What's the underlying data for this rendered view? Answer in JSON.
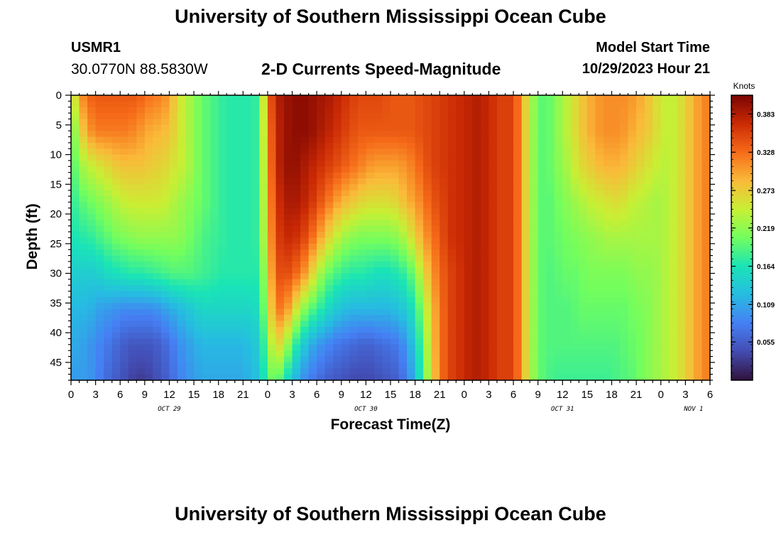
{
  "header": {
    "title": "University of Southern Mississippi Ocean Cube",
    "station": "USMR1",
    "coords": "30.0770N  88.5830W",
    "subtitle": "2-D Currents Speed-Magnitude",
    "start_label": "Model Start Time",
    "start_value": "10/29/2023 Hour 21"
  },
  "footer": {
    "title": "University of Southern Mississippi Ocean Cube"
  },
  "chart_data": {
    "type": "heatmap",
    "title": "2-D Currents Speed-Magnitude",
    "xlabel": "Forecast Time(Z)",
    "ylabel": "Depth (ft)",
    "colorbar_label": "Knots",
    "colorbar_ticks": [
      "0.055",
      "0.109",
      "0.164",
      "0.219",
      "0.273",
      "0.328",
      "0.383"
    ],
    "colorbar_range": [
      0.0,
      0.41
    ],
    "xlim": [
      0,
      78
    ],
    "ylim": [
      0,
      48
    ],
    "y_inverted": true,
    "x_tick_labels": [
      "0",
      "3",
      "6",
      "9",
      "12",
      "15",
      "18",
      "21",
      "0",
      "3",
      "6",
      "9",
      "12",
      "15",
      "18",
      "21",
      "0",
      "3",
      "6",
      "9",
      "12",
      "15",
      "18",
      "21",
      "0",
      "3",
      "6"
    ],
    "date_labels": [
      {
        "text": "OCT 29",
        "hour": 12
      },
      {
        "text": "OCT 30",
        "hour": 36
      },
      {
        "text": "OCT 31",
        "hour": 60
      },
      {
        "text": "NOV 1",
        "hour": 76
      }
    ],
    "y_ticks": [
      0,
      5,
      10,
      15,
      20,
      25,
      30,
      35,
      40,
      45
    ],
    "hours": [
      0,
      1,
      2,
      3,
      4,
      5,
      6,
      7,
      8,
      9,
      10,
      11,
      12,
      13,
      14,
      15,
      16,
      17,
      18,
      19,
      20,
      21,
      22,
      23,
      24,
      25,
      26,
      27,
      28,
      29,
      30,
      31,
      32,
      33,
      34,
      35,
      36,
      37,
      38,
      39,
      40,
      41,
      42,
      43,
      44,
      45,
      46,
      47,
      48,
      49,
      50,
      51,
      52,
      53,
      54,
      55,
      56,
      57,
      58,
      59,
      60,
      61,
      62,
      63,
      64,
      65,
      66,
      67,
      68,
      69,
      70,
      71,
      72,
      73,
      74,
      75,
      76,
      77,
      78
    ],
    "depths": [
      0,
      6,
      12,
      18,
      24,
      30,
      36,
      42,
      48
    ],
    "values": [
      [
        0.22,
        0.3,
        0.33,
        0.34,
        0.34,
        0.34,
        0.34,
        0.34,
        0.34,
        0.33,
        0.32,
        0.32,
        0.3,
        0.26,
        0.24,
        0.22,
        0.2,
        0.19,
        0.18,
        0.17,
        0.17,
        0.17,
        0.17,
        0.18,
        0.32,
        0.38,
        0.39,
        0.4,
        0.4,
        0.4,
        0.39,
        0.39,
        0.38,
        0.37,
        0.36,
        0.35,
        0.35,
        0.35,
        0.35,
        0.34,
        0.34,
        0.34,
        0.34,
        0.35,
        0.35,
        0.36,
        0.36,
        0.37,
        0.37,
        0.38,
        0.38,
        0.37,
        0.36,
        0.35,
        0.36,
        0.3,
        0.24,
        0.2,
        0.19,
        0.21,
        0.23,
        0.25,
        0.27,
        0.29,
        0.3,
        0.31,
        0.31,
        0.31,
        0.31,
        0.3,
        0.29,
        0.27,
        0.25,
        0.24,
        0.25,
        0.27,
        0.29,
        0.31,
        0.32
      ],
      [
        0.19,
        0.26,
        0.3,
        0.32,
        0.32,
        0.32,
        0.32,
        0.32,
        0.31,
        0.3,
        0.29,
        0.29,
        0.28,
        0.26,
        0.24,
        0.22,
        0.2,
        0.19,
        0.18,
        0.17,
        0.17,
        0.17,
        0.17,
        0.18,
        0.31,
        0.37,
        0.39,
        0.4,
        0.4,
        0.4,
        0.39,
        0.38,
        0.37,
        0.36,
        0.35,
        0.34,
        0.34,
        0.34,
        0.34,
        0.34,
        0.34,
        0.34,
        0.34,
        0.35,
        0.35,
        0.36,
        0.36,
        0.37,
        0.37,
        0.38,
        0.38,
        0.37,
        0.36,
        0.35,
        0.36,
        0.3,
        0.24,
        0.2,
        0.19,
        0.21,
        0.23,
        0.25,
        0.27,
        0.29,
        0.3,
        0.31,
        0.31,
        0.31,
        0.3,
        0.29,
        0.28,
        0.27,
        0.25,
        0.24,
        0.25,
        0.27,
        0.29,
        0.31,
        0.32
      ],
      [
        0.18,
        0.22,
        0.24,
        0.25,
        0.26,
        0.27,
        0.28,
        0.28,
        0.28,
        0.28,
        0.27,
        0.27,
        0.26,
        0.25,
        0.24,
        0.22,
        0.2,
        0.19,
        0.18,
        0.17,
        0.17,
        0.17,
        0.17,
        0.18,
        0.3,
        0.37,
        0.39,
        0.4,
        0.39,
        0.38,
        0.37,
        0.36,
        0.35,
        0.34,
        0.33,
        0.32,
        0.31,
        0.3,
        0.3,
        0.3,
        0.3,
        0.31,
        0.32,
        0.34,
        0.35,
        0.36,
        0.36,
        0.37,
        0.37,
        0.38,
        0.38,
        0.37,
        0.36,
        0.35,
        0.36,
        0.3,
        0.24,
        0.2,
        0.19,
        0.21,
        0.22,
        0.24,
        0.26,
        0.27,
        0.28,
        0.29,
        0.29,
        0.29,
        0.28,
        0.27,
        0.26,
        0.25,
        0.24,
        0.24,
        0.25,
        0.27,
        0.29,
        0.31,
        0.32
      ],
      [
        0.17,
        0.19,
        0.2,
        0.21,
        0.22,
        0.23,
        0.24,
        0.25,
        0.25,
        0.25,
        0.25,
        0.25,
        0.24,
        0.23,
        0.22,
        0.21,
        0.2,
        0.19,
        0.18,
        0.17,
        0.17,
        0.17,
        0.17,
        0.18,
        0.29,
        0.36,
        0.38,
        0.39,
        0.38,
        0.37,
        0.35,
        0.33,
        0.31,
        0.29,
        0.28,
        0.27,
        0.26,
        0.26,
        0.26,
        0.26,
        0.27,
        0.29,
        0.3,
        0.32,
        0.34,
        0.35,
        0.36,
        0.37,
        0.37,
        0.38,
        0.38,
        0.37,
        0.36,
        0.35,
        0.36,
        0.3,
        0.24,
        0.2,
        0.19,
        0.2,
        0.21,
        0.22,
        0.23,
        0.24,
        0.25,
        0.25,
        0.26,
        0.26,
        0.25,
        0.24,
        0.24,
        0.23,
        0.23,
        0.24,
        0.25,
        0.27,
        0.29,
        0.31,
        0.32
      ],
      [
        0.16,
        0.17,
        0.17,
        0.18,
        0.19,
        0.2,
        0.21,
        0.21,
        0.22,
        0.22,
        0.22,
        0.22,
        0.22,
        0.22,
        0.21,
        0.2,
        0.19,
        0.18,
        0.18,
        0.17,
        0.17,
        0.17,
        0.17,
        0.18,
        0.28,
        0.35,
        0.37,
        0.37,
        0.36,
        0.34,
        0.31,
        0.28,
        0.25,
        0.23,
        0.22,
        0.21,
        0.21,
        0.21,
        0.21,
        0.21,
        0.22,
        0.24,
        0.27,
        0.3,
        0.32,
        0.34,
        0.36,
        0.37,
        0.37,
        0.38,
        0.38,
        0.37,
        0.36,
        0.35,
        0.36,
        0.3,
        0.24,
        0.2,
        0.19,
        0.2,
        0.2,
        0.21,
        0.21,
        0.22,
        0.22,
        0.23,
        0.23,
        0.23,
        0.23,
        0.23,
        0.23,
        0.23,
        0.23,
        0.24,
        0.25,
        0.27,
        0.29,
        0.31,
        0.32
      ],
      [
        0.14,
        0.14,
        0.14,
        0.14,
        0.15,
        0.16,
        0.16,
        0.17,
        0.17,
        0.17,
        0.18,
        0.18,
        0.19,
        0.19,
        0.19,
        0.19,
        0.18,
        0.18,
        0.17,
        0.17,
        0.17,
        0.17,
        0.17,
        0.17,
        0.26,
        0.34,
        0.35,
        0.34,
        0.32,
        0.29,
        0.24,
        0.21,
        0.19,
        0.18,
        0.17,
        0.17,
        0.17,
        0.16,
        0.16,
        0.16,
        0.17,
        0.18,
        0.21,
        0.26,
        0.3,
        0.33,
        0.35,
        0.36,
        0.37,
        0.38,
        0.38,
        0.37,
        0.36,
        0.35,
        0.36,
        0.3,
        0.24,
        0.2,
        0.19,
        0.19,
        0.2,
        0.2,
        0.2,
        0.21,
        0.21,
        0.21,
        0.21,
        0.21,
        0.21,
        0.22,
        0.22,
        0.22,
        0.23,
        0.24,
        0.25,
        0.27,
        0.29,
        0.31,
        0.32
      ],
      [
        0.12,
        0.12,
        0.12,
        0.11,
        0.1,
        0.1,
        0.09,
        0.09,
        0.09,
        0.09,
        0.09,
        0.1,
        0.11,
        0.12,
        0.13,
        0.14,
        0.15,
        0.15,
        0.15,
        0.15,
        0.15,
        0.15,
        0.15,
        0.16,
        0.24,
        0.32,
        0.32,
        0.28,
        0.23,
        0.2,
        0.18,
        0.16,
        0.14,
        0.13,
        0.12,
        0.12,
        0.12,
        0.12,
        0.12,
        0.12,
        0.13,
        0.14,
        0.17,
        0.22,
        0.28,
        0.32,
        0.35,
        0.36,
        0.37,
        0.38,
        0.38,
        0.37,
        0.36,
        0.35,
        0.36,
        0.3,
        0.24,
        0.2,
        0.19,
        0.19,
        0.19,
        0.19,
        0.2,
        0.2,
        0.2,
        0.2,
        0.2,
        0.2,
        0.2,
        0.21,
        0.21,
        0.22,
        0.23,
        0.24,
        0.25,
        0.27,
        0.29,
        0.31,
        0.32
      ],
      [
        0.11,
        0.11,
        0.1,
        0.09,
        0.08,
        0.07,
        0.06,
        0.05,
        0.05,
        0.05,
        0.05,
        0.06,
        0.07,
        0.09,
        0.1,
        0.11,
        0.12,
        0.12,
        0.12,
        0.12,
        0.12,
        0.12,
        0.13,
        0.14,
        0.21,
        0.27,
        0.25,
        0.19,
        0.15,
        0.12,
        0.1,
        0.09,
        0.08,
        0.07,
        0.07,
        0.06,
        0.06,
        0.06,
        0.07,
        0.07,
        0.08,
        0.1,
        0.14,
        0.2,
        0.27,
        0.32,
        0.35,
        0.36,
        0.37,
        0.38,
        0.38,
        0.37,
        0.36,
        0.35,
        0.36,
        0.3,
        0.24,
        0.2,
        0.19,
        0.19,
        0.19,
        0.19,
        0.19,
        0.19,
        0.19,
        0.19,
        0.19,
        0.19,
        0.2,
        0.2,
        0.21,
        0.22,
        0.23,
        0.24,
        0.25,
        0.27,
        0.29,
        0.31,
        0.32
      ],
      [
        0.1,
        0.1,
        0.1,
        0.09,
        0.07,
        0.06,
        0.05,
        0.04,
        0.03,
        0.03,
        0.04,
        0.05,
        0.06,
        0.08,
        0.09,
        0.1,
        0.11,
        0.11,
        0.11,
        0.11,
        0.11,
        0.11,
        0.12,
        0.13,
        0.19,
        0.21,
        0.17,
        0.13,
        0.1,
        0.08,
        0.07,
        0.06,
        0.05,
        0.05,
        0.04,
        0.04,
        0.04,
        0.04,
        0.05,
        0.05,
        0.06,
        0.08,
        0.12,
        0.19,
        0.26,
        0.32,
        0.35,
        0.36,
        0.37,
        0.38,
        0.38,
        0.37,
        0.36,
        0.35,
        0.36,
        0.3,
        0.24,
        0.2,
        0.19,
        0.18,
        0.18,
        0.18,
        0.18,
        0.18,
        0.18,
        0.18,
        0.18,
        0.19,
        0.19,
        0.2,
        0.21,
        0.22,
        0.23,
        0.24,
        0.25,
        0.27,
        0.29,
        0.31,
        0.32
      ]
    ]
  }
}
